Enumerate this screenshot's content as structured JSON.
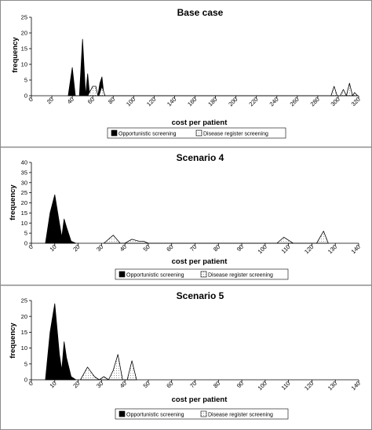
{
  "colors": {
    "opportunistic": "#000000",
    "disease_register": "#ffffff",
    "frame": "#8c8c8c"
  },
  "chart_data": [
    {
      "type": "area",
      "title": "Base case",
      "xlabel": "cost per patient",
      "ylabel": "frequency",
      "xlim": [
        0,
        320
      ],
      "ylim": [
        0,
        25
      ],
      "xticks": [
        "0",
        "20",
        "40",
        "60",
        "80",
        "100",
        "120",
        "140",
        "160",
        "180",
        "200",
        "220",
        "240",
        "260",
        "280",
        "300",
        "320"
      ],
      "yticks": [
        "0",
        "5",
        "10",
        "15",
        "20",
        "25"
      ],
      "grid": false,
      "legend_position": "bottom",
      "series": [
        {
          "name": "Opportunistic screening",
          "fill": "solid",
          "x": [
            36,
            40,
            43,
            47,
            50,
            53,
            55,
            57,
            60,
            65,
            67,
            69,
            71
          ],
          "y": [
            0,
            9,
            0,
            0,
            18,
            0,
            7,
            0,
            2,
            0,
            4,
            6,
            0
          ]
        },
        {
          "name": "Disease register screening",
          "fill": "hatched",
          "x": [
            55,
            60,
            63,
            65,
            66,
            69,
            72,
            293,
            296,
            299,
            302,
            305,
            308,
            311,
            314,
            316,
            319
          ],
          "y": [
            0,
            3,
            3,
            0,
            0,
            3,
            0,
            0,
            3,
            0,
            0,
            2,
            0,
            4,
            0,
            1,
            0
          ]
        }
      ]
    },
    {
      "type": "area",
      "title": "Scenario 4",
      "xlabel": "cost per patient",
      "ylabel": "frequency",
      "xlim": [
        0,
        140
      ],
      "ylim": [
        0,
        40
      ],
      "xticks": [
        "0",
        "10",
        "20",
        "30",
        "40",
        "50",
        "60",
        "70",
        "80",
        "90",
        "100",
        "110",
        "120",
        "130",
        "140"
      ],
      "yticks": [
        "0",
        "5",
        "10",
        "15",
        "20",
        "25",
        "30",
        "35",
        "40"
      ],
      "grid": false,
      "legend_position": "bottom",
      "series": [
        {
          "name": "Opportunistic screening",
          "fill": "solid",
          "x": [
            6,
            8,
            10,
            12,
            13,
            14,
            15,
            17,
            19
          ],
          "y": [
            0,
            15,
            24,
            10,
            3,
            12,
            8,
            1,
            0
          ]
        },
        {
          "name": "Disease register screening",
          "fill": "hatched",
          "x": [
            31,
            35,
            38,
            40,
            43,
            46,
            48,
            50,
            105,
            108,
            112,
            122,
            125,
            127
          ],
          "y": [
            0,
            4,
            0,
            0,
            2,
            1,
            1,
            0,
            0,
            3,
            0,
            0,
            6,
            0
          ]
        }
      ]
    },
    {
      "type": "area",
      "title": "Scenario 5",
      "xlabel": "cost per patient",
      "ylabel": "frequency",
      "xlim": [
        0,
        140
      ],
      "ylim": [
        0,
        25
      ],
      "xticks": [
        "0",
        "10",
        "20",
        "30",
        "40",
        "50",
        "60",
        "70",
        "80",
        "90",
        "100",
        "110",
        "120",
        "130",
        "140"
      ],
      "yticks": [
        "0",
        "5",
        "10",
        "15",
        "20",
        "25"
      ],
      "grid": false,
      "legend_position": "bottom",
      "series": [
        {
          "name": "Opportunistic screening",
          "fill": "solid",
          "x": [
            6,
            8,
            10,
            12,
            13,
            14,
            15,
            17,
            19
          ],
          "y": [
            0,
            15,
            24,
            8,
            3,
            12,
            7,
            1,
            0
          ]
        },
        {
          "name": "Disease register screening",
          "fill": "hatched",
          "x": [
            21,
            24,
            27,
            29,
            31,
            33,
            35,
            37,
            39,
            41,
            43,
            45
          ],
          "y": [
            0,
            4,
            1,
            0,
            1,
            0,
            3,
            8,
            0,
            0,
            6,
            0
          ]
        }
      ]
    }
  ]
}
